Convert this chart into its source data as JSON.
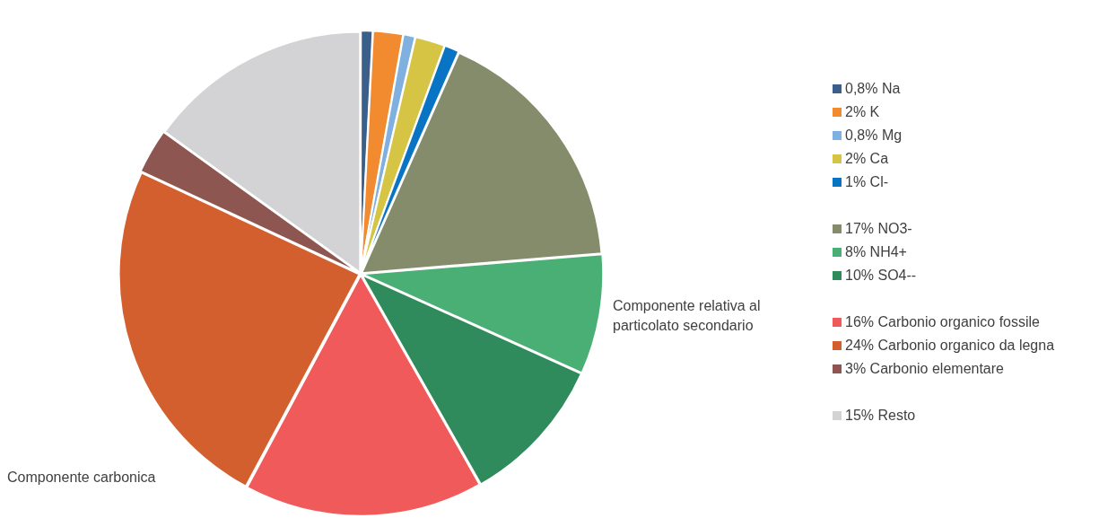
{
  "chart_data": {
    "type": "pie",
    "categories": [
      "0,8% Na",
      "2% K",
      "0,8% Mg",
      "2% Ca",
      "1% Cl-",
      "17% NO3-",
      "8% NH4+",
      "10% SO4--",
      "16% Carbonio organico fossile",
      "24% Carbonio organico da legna",
      "3% Carbonio elementare",
      "15% Resto"
    ],
    "values": [
      0.8,
      2,
      0.8,
      2,
      1,
      17,
      8,
      10,
      16,
      24,
      3,
      15
    ],
    "colors": [
      "#3a5f8a",
      "#f28a30",
      "#7fb0e0",
      "#d6c545",
      "#0a74c4",
      "#848c6c",
      "#4aaf74",
      "#2f8a5c",
      "#f05a5a",
      "#d45f2e",
      "#8e5650",
      "#d3d3d5"
    ],
    "legend": "right",
    "annotations": [
      "Componente relativa al particolato secondario",
      "Componente carbonica"
    ]
  }
}
